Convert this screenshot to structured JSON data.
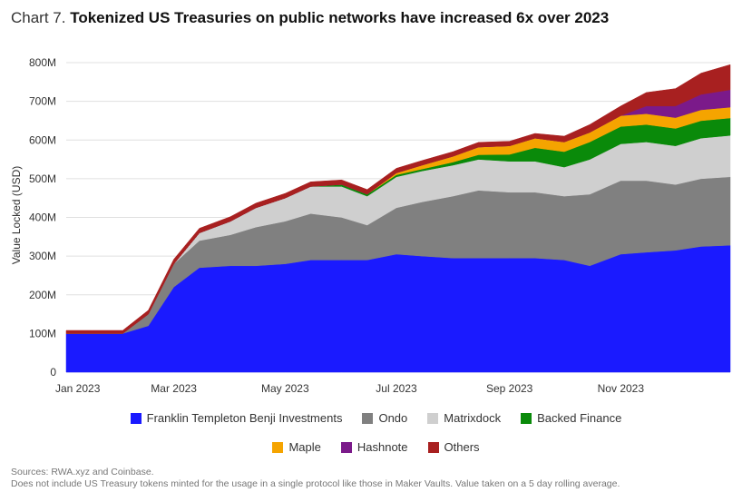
{
  "title": {
    "prefix": "Chart 7.",
    "main": "Tokenized US Treasuries on public networks have increased 6x over 2023"
  },
  "footer": {
    "line1": "Sources: RWA.xyz and Coinbase.",
    "line2": "Does not include US Treasury tokens minted for the usage in a single protocol like those in Maker Vaults. Value taken on a 5 day rolling average."
  },
  "chart_data": {
    "type": "area",
    "stacked": true,
    "ylabel": "Value Locked (USD)",
    "xlabel": "",
    "ylim": [
      0,
      840
    ],
    "y_unit": "M",
    "y_ticks": [
      {
        "value": 0,
        "label": "0"
      },
      {
        "value": 100,
        "label": "100M"
      },
      {
        "value": 200,
        "label": "200M"
      },
      {
        "value": 300,
        "label": "300M"
      },
      {
        "value": 400,
        "label": "400M"
      },
      {
        "value": 500,
        "label": "500M"
      },
      {
        "value": 600,
        "label": "600M"
      },
      {
        "value": 700,
        "label": "700M"
      },
      {
        "value": 800,
        "label": "800M"
      }
    ],
    "x_ticks": [
      {
        "date": "2023-01-01",
        "label": "Jan 2023"
      },
      {
        "date": "2023-03-01",
        "label": "Mar 2023"
      },
      {
        "date": "2023-05-01",
        "label": "May 2023"
      },
      {
        "date": "2023-07-01",
        "label": "Jul 2023"
      },
      {
        "date": "2023-09-01",
        "label": "Sep 2023"
      },
      {
        "date": "2023-11-01",
        "label": "Nov 2023"
      }
    ],
    "x_range": [
      "2023-01-01",
      "2023-12-31"
    ],
    "legend_position": "bottom",
    "x": [
      "2023-01-01",
      "2023-01-15",
      "2023-02-01",
      "2023-02-15",
      "2023-03-01",
      "2023-03-15",
      "2023-04-01",
      "2023-04-15",
      "2023-05-01",
      "2023-05-15",
      "2023-06-01",
      "2023-06-15",
      "2023-07-01",
      "2023-07-15",
      "2023-08-01",
      "2023-08-15",
      "2023-09-01",
      "2023-09-15",
      "2023-10-01",
      "2023-10-15",
      "2023-11-01",
      "2023-11-15",
      "2023-12-01",
      "2023-12-15",
      "2023-12-31"
    ],
    "series": [
      {
        "name": "Franklin Templeton Benji Investments",
        "color": "#1a1aff",
        "values": [
          100,
          100,
          100,
          120,
          220,
          270,
          275,
          275,
          280,
          290,
          290,
          290,
          305,
          300,
          295,
          295,
          295,
          295,
          290,
          275,
          305,
          310,
          315,
          325,
          328
        ]
      },
      {
        "name": "Ondo",
        "color": "#808080",
        "values": [
          0,
          0,
          0,
          30,
          60,
          70,
          80,
          100,
          110,
          120,
          110,
          90,
          120,
          140,
          160,
          175,
          170,
          170,
          165,
          185,
          190,
          185,
          170,
          175,
          177
        ]
      },
      {
        "name": "Matrixdock",
        "color": "#cfcfcf",
        "values": [
          0,
          0,
          0,
          0,
          0,
          20,
          35,
          50,
          60,
          70,
          80,
          75,
          80,
          80,
          80,
          80,
          80,
          80,
          75,
          90,
          95,
          100,
          100,
          105,
          107
        ]
      },
      {
        "name": "Backed Finance",
        "color": "#0a8a0a",
        "values": [
          0,
          0,
          0,
          0,
          0,
          0,
          0,
          0,
          0,
          0,
          5,
          5,
          5,
          5,
          8,
          12,
          18,
          35,
          40,
          45,
          45,
          45,
          45,
          45,
          45
        ]
      },
      {
        "name": "Maple",
        "color": "#f5a400",
        "values": [
          0,
          0,
          0,
          0,
          0,
          0,
          0,
          0,
          0,
          0,
          0,
          0,
          5,
          10,
          15,
          20,
          22,
          25,
          25,
          25,
          28,
          28,
          28,
          28,
          28
        ]
      },
      {
        "name": "Hashnote",
        "color": "#7b1a8a",
        "values": [
          0,
          0,
          0,
          0,
          0,
          0,
          0,
          0,
          0,
          0,
          0,
          0,
          0,
          0,
          0,
          0,
          0,
          0,
          0,
          0,
          0,
          20,
          30,
          40,
          45
        ]
      },
      {
        "name": "Others",
        "color": "#a82020",
        "values": [
          8,
          8,
          8,
          10,
          12,
          12,
          12,
          12,
          12,
          12,
          12,
          12,
          12,
          12,
          12,
          12,
          12,
          12,
          15,
          20,
          25,
          35,
          45,
          55,
          65
        ]
      }
    ]
  }
}
